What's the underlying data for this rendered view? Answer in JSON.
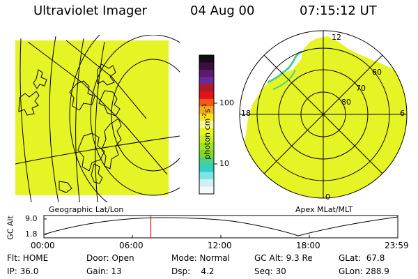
{
  "header": {
    "title": "Ultraviolet Imager",
    "date": "04 Aug 00",
    "time": "07:15:12 UT"
  },
  "colorbar": {
    "unit_label": "photon cm",
    "unit_exp1": "-2",
    "unit_s": "s",
    "unit_exp2": "-1",
    "ticks": [
      "100",
      "10"
    ],
    "colors": [
      "#101010",
      "#3a0f3e",
      "#5b1a70",
      "#6c2a95",
      "#b01a28",
      "#e2121a",
      "#f35a18",
      "#f7a91a",
      "#fbe31f",
      "#f6f59a",
      "#e6f324",
      "#c4ee1d",
      "#9fe41e",
      "#7fd924",
      "#4ad28a",
      "#35cdc6",
      "#7ee5e7",
      "#cfeff2",
      "#f5f7f8"
    ]
  },
  "left_map": {
    "caption": "Geographic Lat/Lon",
    "fill": "#e6f324"
  },
  "right_map": {
    "caption": "Apex MLat/MLT",
    "fill": "#e6f324",
    "mlt_labels": [
      "12",
      "18",
      "6",
      "0"
    ],
    "mlat_labels": [
      "60",
      "70",
      "80"
    ]
  },
  "altitude": {
    "axis_label": "GC Alt",
    "y_ticks": [
      "9.0",
      "1.8"
    ],
    "x_ticks": [
      "00:00",
      "06:00",
      "12:00",
      "18:00",
      "23:59"
    ],
    "marker_color": "#e01010",
    "marker_time_fraction": 0.3022
  },
  "status": {
    "flt": "Flt: HOME",
    "ip": "IP: 36.0",
    "door": "Door: Open",
    "gain": "Gain: 13",
    "mode": "Mode: Normal",
    "dsp": "Dsp:    4.2",
    "gcalt": "GC Alt: 9.3 Re",
    "seq": "Seq: 30",
    "glat": "GLat:  67.8",
    "glon": "GLon: 288.9"
  }
}
